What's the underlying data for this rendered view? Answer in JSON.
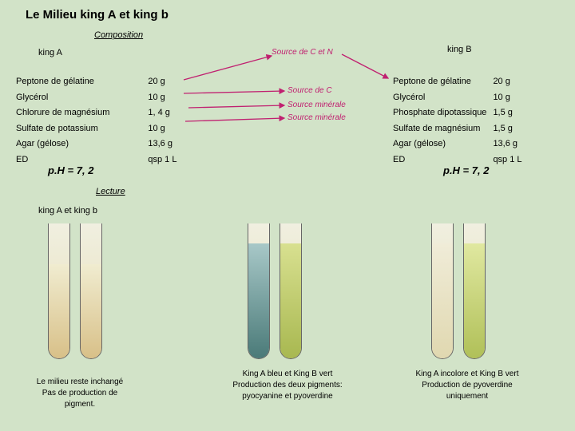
{
  "title": "Le Milieu  king A et king b",
  "composition_heading": "Composition",
  "kingA_heading": "king A",
  "kingB_heading": "king B",
  "ingredientsA": {
    "rows": [
      [
        "Peptone de gélatine",
        "20 g"
      ],
      [
        "Glycérol",
        "10 g"
      ],
      [
        "Chlorure de magnésium",
        "1, 4 g"
      ],
      [
        "Sulfate de potassium",
        "10 g"
      ],
      [
        "Agar (gélose)",
        "13,6 g"
      ],
      [
        "ED",
        "qsp 1 L"
      ]
    ]
  },
  "ingredientsB": {
    "rows": [
      [
        "Peptone de gélatine",
        "20 g"
      ],
      [
        "Glycérol",
        "10 g"
      ],
      [
        "Phosphate dipotassique",
        "1,5 g"
      ],
      [
        "Sulfate de magnésium",
        "1,5  g"
      ],
      [
        "Agar (gélose)",
        "13,6 g"
      ],
      [
        "ED",
        "qsp 1 L"
      ]
    ]
  },
  "phA": "p.H = 7, 2",
  "phB": "p.H = 7, 2",
  "lecture_heading": "Lecture",
  "lecture_sub": "king A  et  king b",
  "annotations": {
    "cn": "Source de C et N",
    "c": "Source de C",
    "min1": "Source  minérale",
    "min2": "Source minérale"
  },
  "caption_left": "Le milieu reste inchangé\nPas de production de\npigment.",
  "caption_mid": "King A bleu et King B vert\nProduction des deux pigments:\npyocyanine et pyoverdine",
  "caption_right": "King A incolore et King B vert\nProduction de pyoverdine\nuniquement",
  "arrow_color": "#c02070",
  "tube_colors": {
    "plain": "#e5d8a8",
    "blue": "#6fa8b0",
    "green": "#b8cc70",
    "pale": "#e8e4c0"
  }
}
